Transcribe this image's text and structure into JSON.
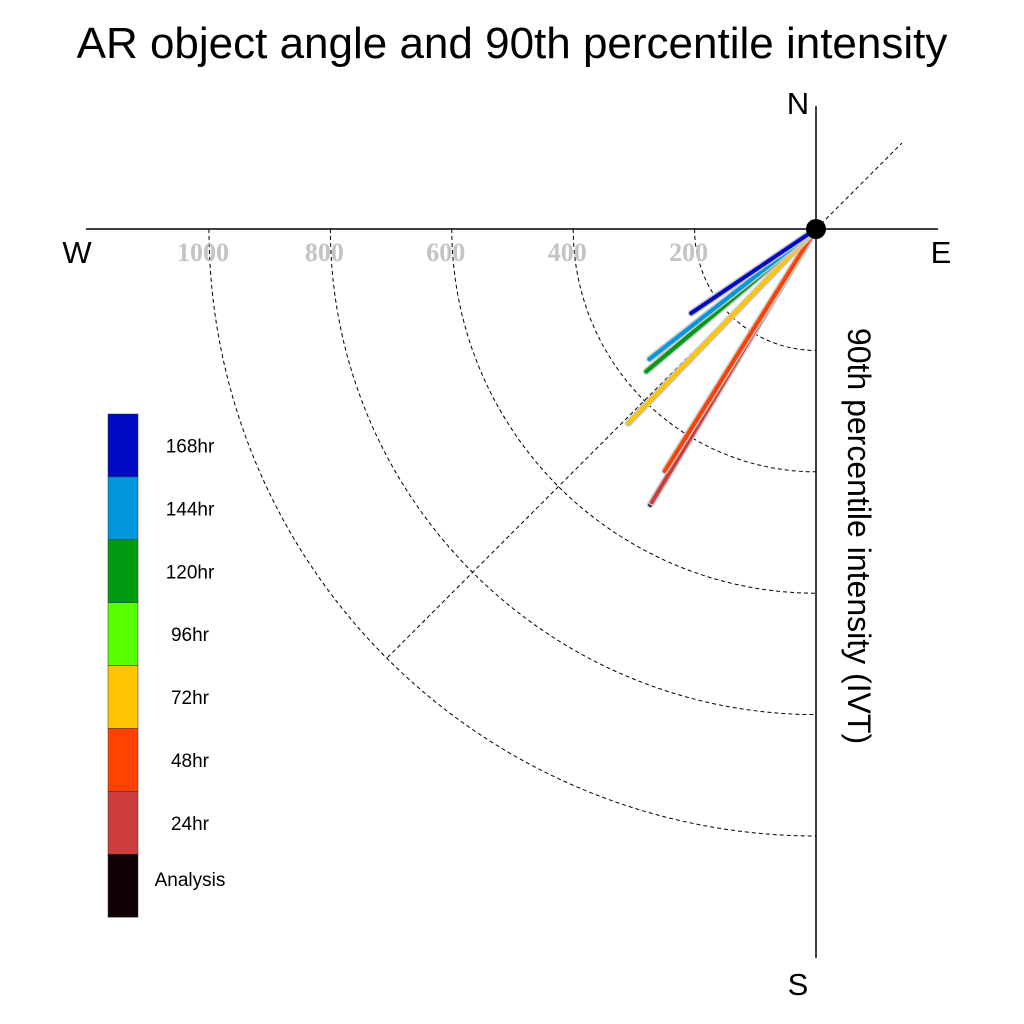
{
  "chart_data": {
    "type": "polar-vector",
    "title": "AR object angle and 90th percentile intensity",
    "ylabel": "90th percentile intensity (IVT)",
    "compass": {
      "north": "N",
      "south": "S",
      "east": "E",
      "west": "W"
    },
    "radial_ticks": [
      {
        "value": 200,
        "label": "200"
      },
      {
        "value": 400,
        "label": "400"
      },
      {
        "value": 600,
        "label": "600"
      },
      {
        "value": 800,
        "label": "800"
      },
      {
        "value": 1000,
        "label": "1000"
      }
    ],
    "radial_range": [
      0,
      1000
    ],
    "grid": true,
    "legend_placement": "left",
    "series": [
      {
        "name": "Analysis",
        "color": "#0f0008",
        "magnitude": 530,
        "angle_deg": 211
      },
      {
        "name": "24hr",
        "color": "#cd3d3d",
        "magnitude": 525,
        "angle_deg": 211
      },
      {
        "name": "48hr",
        "color": "#ff4200",
        "magnitude": 470,
        "angle_deg": 212
      },
      {
        "name": "72hr",
        "color": "#ffc400",
        "magnitude": 445,
        "angle_deg": 224
      },
      {
        "name": "96hr",
        "color": "#58ff00",
        "magnitude": null,
        "angle_deg": null
      },
      {
        "name": "120hr",
        "color": "#009a13",
        "magnitude": 365,
        "angle_deg": 230
      },
      {
        "name": "144hr",
        "color": "#0097dc",
        "magnitude": 348,
        "angle_deg": 232
      },
      {
        "name": "168hr",
        "color": "#0009c4",
        "magnitude": 248,
        "angle_deg": 236
      }
    ]
  }
}
